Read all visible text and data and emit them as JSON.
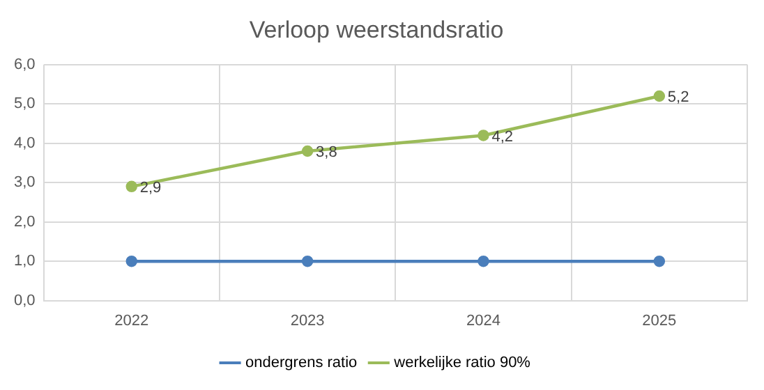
{
  "chart_data": {
    "type": "line",
    "title": "Verloop weerstandsratio",
    "categories": [
      "2022",
      "2023",
      "2024",
      "2025"
    ],
    "series": [
      {
        "name": "ondergrens ratio",
        "color": "#4a7ebb",
        "values": [
          1.0,
          1.0,
          1.0,
          1.0
        ]
      },
      {
        "name": "werkelijke ratio 90%",
        "color": "#9bbb59",
        "values": [
          2.9,
          3.8,
          4.2,
          5.2
        ],
        "value_labels": [
          "2,9",
          "3,8",
          "4,2",
          "5,2"
        ]
      }
    ],
    "ylim": [
      0,
      6
    ],
    "yticks": [
      {
        "value": 0,
        "label": "0,0"
      },
      {
        "value": 1,
        "label": "1,0"
      },
      {
        "value": 2,
        "label": "2,0"
      },
      {
        "value": 3,
        "label": "3,0"
      },
      {
        "value": 4,
        "label": "4,0"
      },
      {
        "value": 5,
        "label": "5,0"
      },
      {
        "value": 6,
        "label": "6,0"
      }
    ],
    "grid": true,
    "legend": "bottom",
    "marker": "circle",
    "line_style": "solid"
  }
}
